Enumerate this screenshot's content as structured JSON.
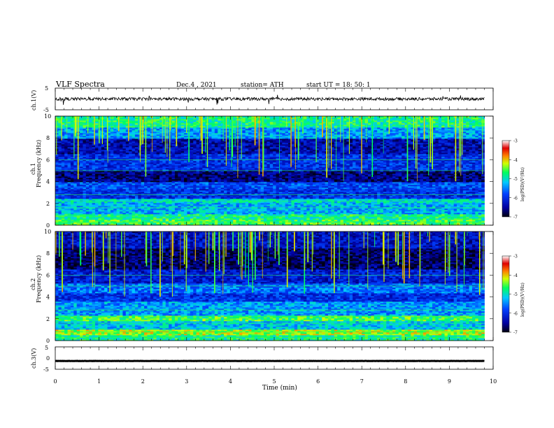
{
  "header": {
    "title": "VLF  Spectra",
    "date": "Dec.4  , 2021",
    "station": "station= ATH",
    "start": "start  UT  =   18: 50: 1"
  },
  "chart_data": [
    {
      "type": "line",
      "name": "ch1-waveform",
      "ylabel": "ch.1(V)",
      "ylim": [
        -5,
        5
      ],
      "yticks": [
        "5",
        "-5"
      ],
      "xlim": [
        0,
        10
      ],
      "x_extent_min": 9.8,
      "level": 0,
      "line_color": "#000000"
    },
    {
      "type": "heatmap",
      "name": "ch1-spectrogram",
      "ylabel_channel": "ch.1",
      "ylabel": "Frequency  (kHz)",
      "ylim": [
        0,
        10
      ],
      "yticks": [
        "0",
        "2",
        "4",
        "6",
        "8",
        "10"
      ],
      "xlim": [
        0,
        10
      ],
      "x_extent_min": 9.8,
      "colorbar": {
        "label": "log(PSD)(V²/Hz)",
        "ticks": [
          "-3",
          "-4",
          "-5",
          "-6",
          "-7"
        ],
        "range": [
          -7,
          -3
        ]
      },
      "bands": [
        {
          "f": [
            0.0,
            0.5
          ],
          "level": -4.6
        },
        {
          "f": [
            0.5,
            1.0
          ],
          "level": -4.8
        },
        {
          "f": [
            1.0,
            2.0
          ],
          "level": -5.3
        },
        {
          "f": [
            2.0,
            2.5
          ],
          "level": -5.1
        },
        {
          "f": [
            2.5,
            3.3
          ],
          "level": -6.0
        },
        {
          "f": [
            3.3,
            4.0
          ],
          "level": -5.8
        },
        {
          "f": [
            4.0,
            5.0
          ],
          "level": -6.6
        },
        {
          "f": [
            5.0,
            6.5
          ],
          "level": -6.0
        },
        {
          "f": [
            6.5,
            8.0
          ],
          "level": -6.4
        },
        {
          "f": [
            8.0,
            9.0
          ],
          "level": -5.4
        },
        {
          "f": [
            9.0,
            10.0
          ],
          "level": -4.8
        }
      ]
    },
    {
      "type": "heatmap",
      "name": "ch2-spectrogram",
      "ylabel_channel": "ch.2",
      "ylabel": "Frequency  (kHz)",
      "ylim": [
        0,
        10
      ],
      "yticks": [
        "0",
        "2",
        "4",
        "6",
        "8",
        "10"
      ],
      "xlim": [
        0,
        10
      ],
      "x_extent_min": 9.8,
      "colorbar": {
        "label": "log(PSD)(V²/Hz)",
        "ticks": [
          "-3",
          "-4",
          "-5",
          "-6",
          "-7"
        ],
        "range": [
          -7,
          -3
        ]
      },
      "bands": [
        {
          "f": [
            0.0,
            0.5
          ],
          "level": -4.8
        },
        {
          "f": [
            0.5,
            1.0
          ],
          "level": -4.3
        },
        {
          "f": [
            1.0,
            1.8
          ],
          "level": -5.2
        },
        {
          "f": [
            1.8,
            2.3
          ],
          "level": -4.6
        },
        {
          "f": [
            2.3,
            3.6
          ],
          "level": -5.4
        },
        {
          "f": [
            3.6,
            4.4
          ],
          "level": -6.0
        },
        {
          "f": [
            4.4,
            5.2
          ],
          "level": -5.6
        },
        {
          "f": [
            5.2,
            6.5
          ],
          "level": -6.2
        },
        {
          "f": [
            6.5,
            8.5
          ],
          "level": -6.7
        },
        {
          "f": [
            8.5,
            10.0
          ],
          "level": -6.3
        }
      ]
    },
    {
      "type": "line",
      "name": "ch3-waveform",
      "ylabel": "ch.3(V)",
      "ylim": [
        -5,
        5
      ],
      "yticks": [
        "5",
        "0",
        "-5"
      ],
      "xlim": [
        0,
        10
      ],
      "x_extent_min": 9.8,
      "level": -1.3,
      "line_color": "#000000"
    }
  ],
  "xaxis": {
    "label": "Time  (min)",
    "ticks": [
      "0",
      "1",
      "2",
      "3",
      "4",
      "5",
      "6",
      "7",
      "8",
      "9",
      "10"
    ]
  }
}
